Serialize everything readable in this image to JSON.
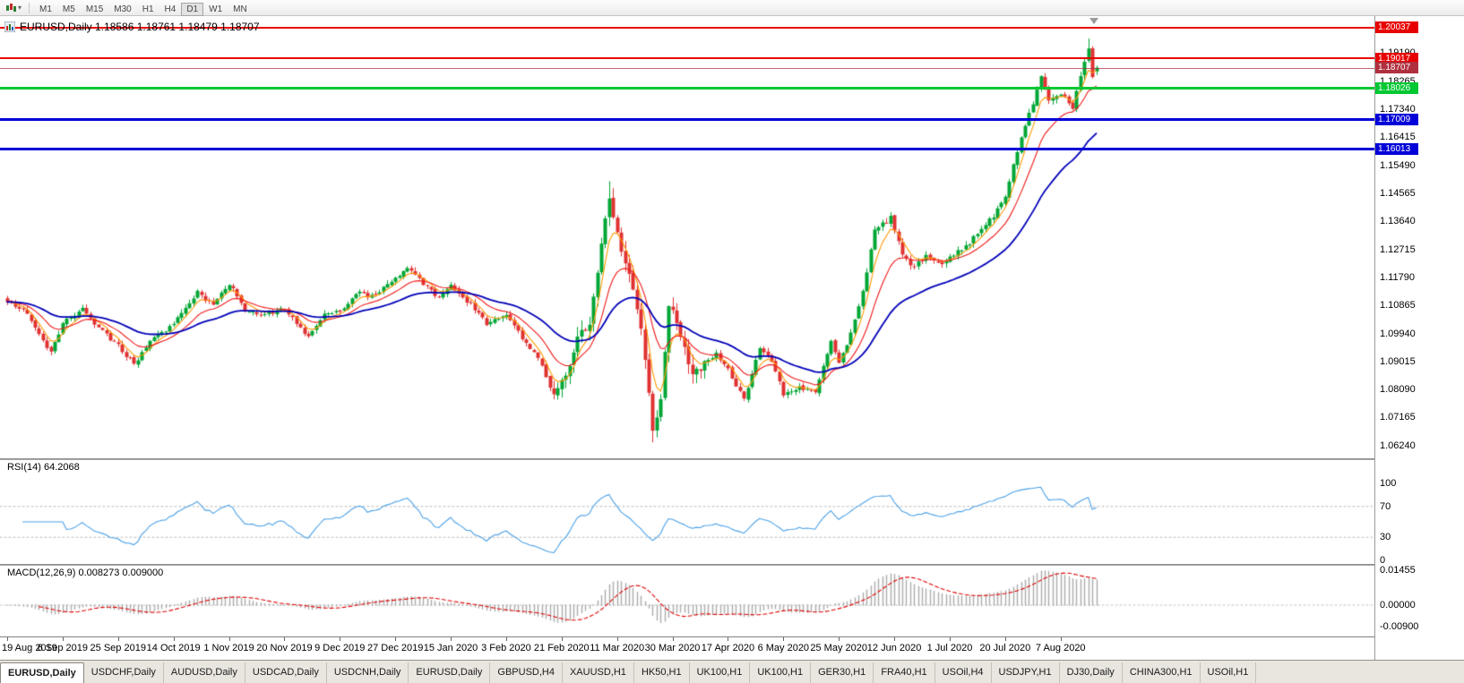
{
  "toolbar": {
    "timeframes": [
      "M1",
      "M5",
      "M15",
      "M30",
      "H1",
      "H4",
      "D1",
      "W1",
      "MN"
    ],
    "active_timeframe": "D1",
    "chart_type_icon": "candlestick-chart-icon",
    "dropdown_glyph": "▾"
  },
  "chart": {
    "title": "EURUSD,Daily  1.18586 1.18761 1.18479 1.18707",
    "current_price": "1.18707",
    "current_price_color": "#b03040",
    "price_axis_ticks": [
      "1.19190",
      "1.18265",
      "1.17340",
      "1.16415",
      "1.15490",
      "1.14565",
      "1.13640",
      "1.12715",
      "1.11790",
      "1.10865",
      "1.09940",
      "1.09015",
      "1.08090",
      "1.07165",
      "1.06240"
    ],
    "hlines": [
      {
        "price": "1.20037",
        "color": "#e80000",
        "thickness": 2
      },
      {
        "price": "1.19017",
        "color": "#e80000",
        "thickness": 2
      },
      {
        "price": "1.18026",
        "color": "#00c832",
        "thickness": 3
      },
      {
        "price": "1.17009",
        "color": "#0000d8",
        "thickness": 3
      },
      {
        "price": "1.16013",
        "color": "#0000d8",
        "thickness": 3
      }
    ]
  },
  "rsi_panel": {
    "label": "RSI(14) 64.2068",
    "ticks": [
      "100",
      "70",
      "30",
      "0"
    ],
    "levels": [
      70,
      30
    ],
    "line_color": "#4aa0e6"
  },
  "macd_panel": {
    "label": "MACD(12,26,9) 0.008273 0.009000",
    "ticks": [
      "0.01455",
      "0.00000",
      "-0.00900"
    ],
    "histogram_color": "#ababab",
    "signal_color": "#e00000"
  },
  "tabs": {
    "active_index": 0,
    "items": [
      "EURUSD,Daily",
      "USDCHF,Daily",
      "AUDUSD,Daily",
      "USDCAD,Daily",
      "USDCNH,Daily",
      "EURUSD,Daily",
      "GBPUSD,H4",
      "XAUUSD,H1",
      "HK50,H1",
      "UK100,H1",
      "UK100,H1",
      "GER30,H1",
      "FRA40,H1",
      "USOil,H4",
      "USDJPY,H1",
      "DJ30,Daily",
      "CHINA300,H1",
      "USOil,H1"
    ],
    "active_tab": "EURUSD,Daily"
  },
  "chart_data": {
    "type": "candlestick",
    "symbol": "EURUSD",
    "timeframe": "Daily",
    "ohlc": {
      "open": 1.18586,
      "high": 1.18761,
      "low": 1.18479,
      "close": 1.18707
    },
    "last_close": 1.18707,
    "bars_total": 276,
    "bars_per_label": 14,
    "price_axis_range": [
      1.0585,
      1.2035
    ],
    "date_labels": [
      "19 Aug 2019",
      "6 Sep 2019",
      "25 Sep 2019",
      "14 Oct 2019",
      "1 Nov 2019",
      "20 Nov 2019",
      "9 Dec 2019",
      "27 Dec 2019",
      "15 Jan 2020",
      "3 Feb 2020",
      "21 Feb 2020",
      "11 Mar 2020",
      "30 Mar 2020",
      "17 Apr 2020",
      "6 May 2020",
      "25 May 2020",
      "12 Jun 2020",
      "1 Jul 2020",
      "20 Jul 2020",
      "7 Aug 2020"
    ],
    "horizontal_levels": [
      1.20037,
      1.19017,
      1.18026,
      1.17009,
      1.16013
    ],
    "candle_colors": {
      "up": "#00a635",
      "down": "#e03232"
    },
    "moving_averages": [
      {
        "name": "ma-fast",
        "color": "#ff9900"
      },
      {
        "name": "ma-medium",
        "color": "#f01818"
      },
      {
        "name": "ma-slow",
        "color": "#0000b8"
      }
    ],
    "close_anchors": [
      [
        0,
        1.1095
      ],
      [
        4,
        1.1075
      ],
      [
        8,
        1.099
      ],
      [
        11,
        1.0928
      ],
      [
        14,
        1.103
      ],
      [
        19,
        1.1073
      ],
      [
        24,
        1.1
      ],
      [
        28,
        1.0955
      ],
      [
        32,
        1.089
      ],
      [
        36,
        1.097
      ],
      [
        42,
        1.1025
      ],
      [
        48,
        1.113
      ],
      [
        52,
        1.1085
      ],
      [
        56,
        1.116
      ],
      [
        60,
        1.107
      ],
      [
        64,
        1.1055
      ],
      [
        70,
        1.1075
      ],
      [
        76,
        1.0982
      ],
      [
        80,
        1.1055
      ],
      [
        84,
        1.1065
      ],
      [
        88,
        1.113
      ],
      [
        92,
        1.1115
      ],
      [
        98,
        1.1175
      ],
      [
        101,
        1.1212
      ],
      [
        105,
        1.116
      ],
      [
        109,
        1.1108
      ],
      [
        112,
        1.115
      ],
      [
        117,
        1.109
      ],
      [
        121,
        1.1025
      ],
      [
        126,
        1.106
      ],
      [
        130,
        1.098
      ],
      [
        134,
        1.0915
      ],
      [
        138,
        1.079
      ],
      [
        141,
        1.085
      ],
      [
        144,
        1.098
      ],
      [
        147,
        1.103
      ],
      [
        150,
        1.1285
      ],
      [
        152,
        1.1445
      ],
      [
        155,
        1.127
      ],
      [
        157,
        1.1185
      ],
      [
        159,
        1.108
      ],
      [
        161,
        1.0915
      ],
      [
        163,
        1.067
      ],
      [
        165,
        1.0785
      ],
      [
        167,
        1.108
      ],
      [
        169,
        1.104
      ],
      [
        171,
        1.095
      ],
      [
        173,
        1.0855
      ],
      [
        176,
        1.0895
      ],
      [
        179,
        1.093
      ],
      [
        182,
        1.0875
      ],
      [
        186,
        1.0775
      ],
      [
        190,
        1.095
      ],
      [
        193,
        1.09
      ],
      [
        196,
        1.0795
      ],
      [
        200,
        1.0815
      ],
      [
        204,
        1.0805
      ],
      [
        208,
        1.0975
      ],
      [
        210,
        1.09
      ],
      [
        213,
        1.099
      ],
      [
        216,
        1.1135
      ],
      [
        219,
        1.1335
      ],
      [
        223,
        1.1375
      ],
      [
        226,
        1.1255
      ],
      [
        229,
        1.121
      ],
      [
        232,
        1.1255
      ],
      [
        235,
        1.122
      ],
      [
        238,
        1.125
      ],
      [
        242,
        1.128
      ],
      [
        246,
        1.134
      ],
      [
        249,
        1.138
      ],
      [
        252,
        1.1445
      ],
      [
        255,
        1.1595
      ],
      [
        258,
        1.1715
      ],
      [
        261,
        1.184
      ],
      [
        263,
        1.1765
      ],
      [
        266,
        1.1785
      ],
      [
        269,
        1.174
      ],
      [
        271,
        1.184
      ],
      [
        273,
        1.193
      ],
      [
        274,
        1.1835
      ],
      [
        275,
        1.18707
      ]
    ],
    "extreme_points": {
      "highs": [
        [
          152,
          1.1495
        ],
        [
          273,
          1.1966
        ]
      ],
      "lows": [
        [
          138,
          1.0778
        ],
        [
          163,
          1.0636
        ]
      ]
    },
    "rsi": {
      "period": 14,
      "current": 64.2068
    },
    "macd": {
      "fast": 12,
      "slow": 26,
      "signal_period": 9,
      "current": 0.008273,
      "current_signal": 0.009
    }
  }
}
